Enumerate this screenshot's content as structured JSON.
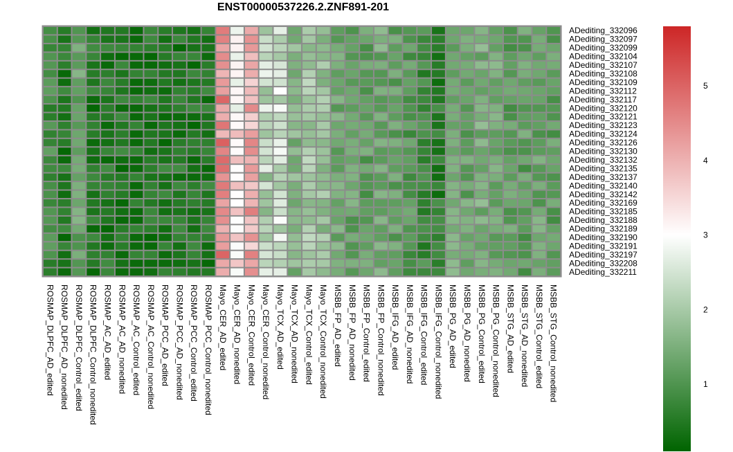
{
  "chart_data": {
    "type": "heatmap",
    "title": "ENST00000537226.2.ZNF891-201",
    "columns": [
      "ROSMAP_DLPFC_AD_edited",
      "ROSMAP_DLPFC_AD_nonedited",
      "ROSMAP_DLPFC_Control_edited",
      "ROSMAP_DLPFC_Control_nonedited",
      "ROSMAP_AC_AD_edited",
      "ROSMAP_AC_AD_nonedited",
      "ROSMAP_AC_Control_edited",
      "ROSMAP_AC_Control_nonedited",
      "ROSMAP_PCC_AD_edited",
      "ROSMAP_PCC_AD_nonedited",
      "ROSMAP_PCC_Control_edited",
      "ROSMAP_PCC_Control_nonedited",
      "Mayo_CER_AD_edited",
      "Mayo_CER_AD_nonedited",
      "Mayo_CER_Control_edited",
      "Mayo_CER_Control_nonedited",
      "Mayo_TCX_AD_edited",
      "Mayo_TCX_AD_nonedited",
      "Mayo_TCX_Control_edited",
      "Mayo_TCX_Control_nonedited",
      "MSBB_FP_AD_edited",
      "MSBB_FP_AD_nonedited",
      "MSBB_FP_Control_edited",
      "MSBB_FP_Control_nonedited",
      "MSBB_IFG_AD_edited",
      "MSBB_IFG_AD_nonedited",
      "MSBB_IFG_Control_edited",
      "MSBB_IFG_Control_nonedited",
      "MSBB_PG_AD_edited",
      "MSBB_PG_AD_nonedited",
      "MSBB_PG_Control_edited",
      "MSBB_PG_Control_nonedited",
      "MSBB_STG_AD_edited",
      "MSBB_STG_AD_nonedited",
      "MSBB_STG_Control_edited",
      "MSBB_STG_Control_nonedited"
    ],
    "rows": [
      "ADediting_332096",
      "ADediting_332097",
      "ADediting_332099",
      "ADediting_332104",
      "ADediting_332107",
      "ADediting_332108",
      "ADediting_332109",
      "ADediting_332112",
      "ADediting_332117",
      "ADediting_332120",
      "ADediting_332121",
      "ADediting_332123",
      "ADediting_332124",
      "ADediting_332126",
      "ADediting_332130",
      "ADediting_332132",
      "ADediting_332135",
      "ADediting_332137",
      "ADediting_332140",
      "ADediting_332142",
      "ADediting_332169",
      "ADediting_332185",
      "ADediting_332188",
      "ADediting_332189",
      "ADediting_332190",
      "ADediting_332191",
      "ADediting_332197",
      "ADediting_332208",
      "ADediting_332211"
    ],
    "col_base": [
      0.9,
      0.5,
      1.3,
      0.5,
      0.5,
      0.5,
      0.5,
      0.5,
      0.5,
      0.5,
      0.5,
      0.5,
      4.5,
      3.3,
      4.1,
      2.2,
      2.5,
      1.6,
      2.0,
      1.8,
      1.4,
      1.3,
      1.2,
      1.4,
      1.2,
      1.1,
      0.8,
      0.6,
      1.4,
      1.3,
      1.5,
      1.4,
      1.2,
      1.2,
      1.3,
      1.2
    ],
    "values": [],
    "colorscale": {
      "min": 0.1,
      "max": 5.8,
      "stops": [
        {
          "v": 0.1,
          "c": "#006400"
        },
        {
          "v": 3.0,
          "c": "#ffffff"
        },
        {
          "v": 5.8,
          "c": "#cd2626"
        }
      ],
      "na_color": "#808080"
    },
    "legend_ticks": [
      1,
      2,
      3,
      4,
      5
    ],
    "legend_position": "right",
    "grid": true
  }
}
